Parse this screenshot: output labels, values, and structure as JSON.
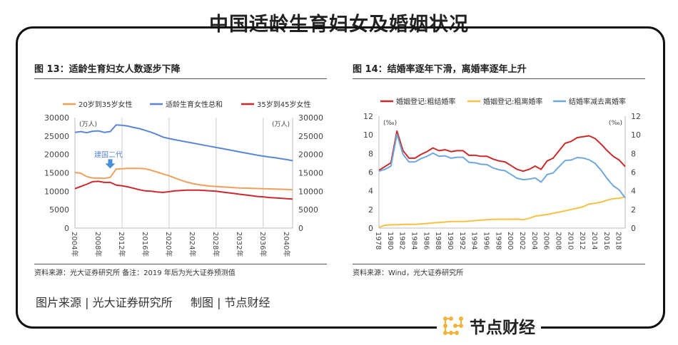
{
  "title": "中国适龄生育妇女及婚姻状况",
  "credit": "图片来源 | 光大证券研究所     制图 | 节点财经",
  "logo_text": "节点财经",
  "chart_data": [
    {
      "type": "line",
      "title": "图 13：适龄生育妇女人数逐步下降",
      "unit": "(万人)",
      "ylim": [
        0,
        30000
      ],
      "yticks": [
        0,
        5000,
        10000,
        15000,
        20000,
        25000,
        30000
      ],
      "xticks": [
        "2004年",
        "2008年",
        "2012年",
        "2016年",
        "2020年",
        "2024年",
        "2028年",
        "2032年",
        "2036年",
        "2040年"
      ],
      "x": [
        2004,
        2005,
        2006,
        2007,
        2008,
        2009,
        2010,
        2011,
        2012,
        2013,
        2014,
        2015,
        2016,
        2017,
        2018,
        2019,
        2020,
        2021,
        2022,
        2023,
        2024,
        2025,
        2026,
        2027,
        2028,
        2029,
        2030,
        2031,
        2032,
        2033,
        2034,
        2035,
        2036,
        2037,
        2038,
        2039,
        2040,
        2041
      ],
      "annotation": "建国二代",
      "source": "资料来源：光大证券研究所    备注：2019 年后为光大证券预测值",
      "series": [
        {
          "name": "20岁到35岁女性",
          "color": "#f0a05a",
          "values": [
            15100,
            14900,
            14000,
            13600,
            13600,
            13500,
            13800,
            16000,
            16100,
            16200,
            16200,
            16200,
            16100,
            15700,
            15200,
            14700,
            14200,
            13600,
            13000,
            12500,
            12100,
            11800,
            11600,
            11400,
            11300,
            11200,
            11100,
            11000,
            10900,
            10850,
            10800,
            10750,
            10700,
            10650,
            10600,
            10550,
            10500,
            10400
          ]
        },
        {
          "name": "适龄生育女性总和",
          "color": "#5b86d6",
          "values": [
            26000,
            26200,
            25900,
            26300,
            26400,
            26000,
            26200,
            28000,
            27900,
            27700,
            27300,
            27000,
            26500,
            26000,
            25400,
            24700,
            24300,
            24000,
            23700,
            23400,
            23100,
            22800,
            22500,
            22200,
            21900,
            21600,
            21300,
            21000,
            20700,
            20400,
            20100,
            19800,
            19550,
            19300,
            19100,
            18850,
            18600,
            18300
          ]
        },
        {
          "name": "35岁到45岁女性",
          "color": "#cc2a2a",
          "values": [
            10700,
            11300,
            11900,
            12600,
            12700,
            12400,
            12400,
            11700,
            11500,
            11200,
            10800,
            10400,
            10100,
            10000,
            9800,
            9700,
            9900,
            10100,
            10200,
            10300,
            10300,
            10300,
            10200,
            10100,
            10000,
            9800,
            9600,
            9400,
            9200,
            9000,
            8800,
            8600,
            8500,
            8300,
            8200,
            8100,
            8000,
            7900
          ]
        }
      ]
    },
    {
      "type": "line",
      "title": "图 14：结婚率逐年下滑，离婚率逐年上升",
      "unit": "(‰)",
      "ylim": [
        0,
        12
      ],
      "yticks": [
        0,
        2,
        4,
        6,
        8,
        10,
        12
      ],
      "xticks": [
        "1978",
        "1980",
        "1982",
        "1984",
        "1986",
        "1988",
        "1990",
        "1992",
        "1994",
        "1996",
        "1998",
        "2000",
        "2002",
        "2004",
        "2006",
        "2008",
        "2010",
        "2012",
        "2014",
        "2016",
        "2018"
      ],
      "x": [
        1978,
        1979,
        1980,
        1981,
        1982,
        1983,
        1984,
        1985,
        1986,
        1987,
        1988,
        1989,
        1990,
        1991,
        1992,
        1993,
        1994,
        1995,
        1996,
        1997,
        1998,
        1999,
        2000,
        2001,
        2002,
        2003,
        2004,
        2005,
        2006,
        2007,
        2008,
        2009,
        2010,
        2011,
        2012,
        2013,
        2014,
        2015,
        2016,
        2017,
        2018,
        2019
      ],
      "source": "资料来源：Wind，光大证券研究所",
      "series": [
        {
          "name": "婚姻登记:粗结婚率",
          "color": "#cc2a2a",
          "values": [
            6.2,
            6.6,
            7.0,
            10.4,
            8.3,
            7.5,
            7.5,
            7.9,
            8.2,
            8.6,
            8.3,
            8.4,
            8.2,
            8.3,
            8.3,
            7.8,
            7.8,
            7.7,
            7.7,
            7.4,
            7.2,
            7.1,
            6.7,
            6.3,
            6.1,
            6.3,
            6.65,
            6.3,
            7.2,
            7.5,
            8.3,
            9.1,
            9.3,
            9.7,
            9.8,
            9.9,
            9.6,
            9.0,
            8.3,
            7.7,
            7.3,
            6.6
          ]
        },
        {
          "name": "婚姻登记:粗离婚率",
          "color": "#f5c242",
          "values": [
            0.1,
            0.3,
            0.35,
            0.35,
            0.4,
            0.4,
            0.4,
            0.45,
            0.5,
            0.55,
            0.6,
            0.65,
            0.7,
            0.7,
            0.7,
            0.75,
            0.8,
            0.85,
            0.9,
            0.95,
            0.95,
            0.95,
            0.95,
            0.96,
            0.9,
            1.05,
            1.28,
            1.37,
            1.46,
            1.59,
            1.71,
            1.85,
            2.0,
            2.13,
            2.29,
            2.58,
            2.67,
            2.79,
            3.0,
            3.15,
            3.2,
            3.36
          ]
        },
        {
          "name": "结婚率减去离婚率",
          "color": "#6fa8dc",
          "values": [
            6.1,
            6.3,
            6.65,
            10.05,
            7.9,
            7.1,
            7.1,
            7.45,
            7.7,
            8.05,
            7.7,
            7.75,
            7.5,
            7.6,
            7.6,
            7.05,
            7.0,
            6.85,
            6.8,
            6.45,
            6.25,
            6.15,
            5.75,
            5.34,
            5.2,
            5.25,
            5.37,
            4.93,
            5.74,
            5.91,
            6.59,
            7.25,
            7.3,
            7.57,
            7.51,
            7.32,
            6.93,
            6.21,
            5.3,
            4.55,
            4.1,
            3.24
          ]
        }
      ]
    }
  ]
}
